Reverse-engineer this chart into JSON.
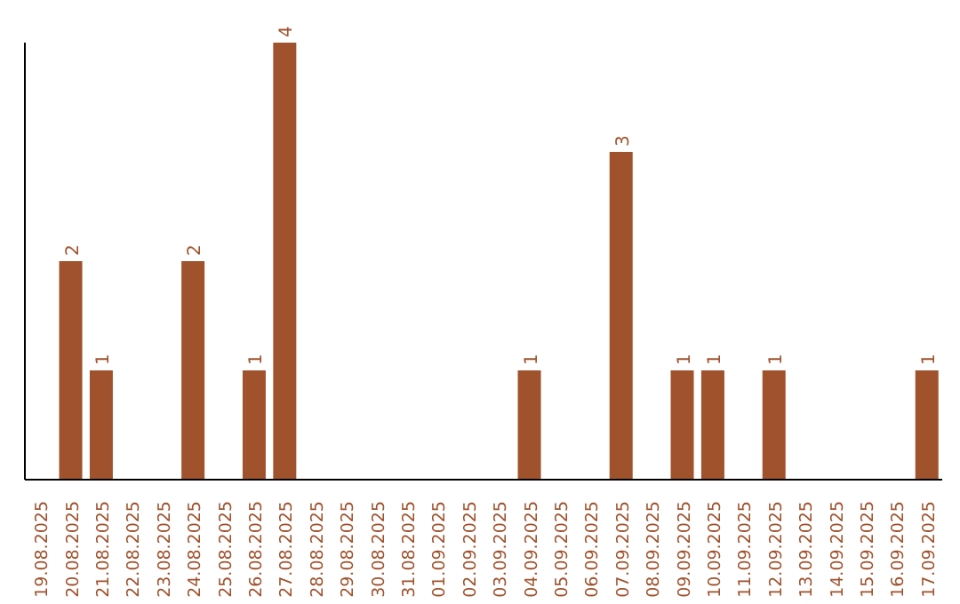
{
  "chart_data": {
    "type": "bar",
    "categories": [
      "19.08.2025",
      "20.08.2025",
      "21.08.2025",
      "22.08.2025",
      "23.08.2025",
      "24.08.2025",
      "25.08.2025",
      "26.08.2025",
      "27.08.2025",
      "28.08.2025",
      "29.08.2025",
      "30.08.2025",
      "31.08.2025",
      "01.09.2025",
      "02.09.2025",
      "03.09.2025",
      "04.09.2025",
      "05.09.2025",
      "06.09.2025",
      "07.09.2025",
      "08.09.2025",
      "09.09.2025",
      "10.09.2025",
      "11.09.2025",
      "12.09.2025",
      "13.09.2025",
      "14.09.2025",
      "15.09.2025",
      "16.09.2025",
      "17.09.2025"
    ],
    "values": [
      null,
      2,
      1,
      null,
      null,
      2,
      null,
      1,
      4,
      null,
      null,
      null,
      null,
      null,
      null,
      null,
      1,
      null,
      null,
      3,
      null,
      1,
      1,
      null,
      1,
      null,
      null,
      null,
      null,
      1
    ],
    "color": "#a0522d",
    "data_labels": true
  }
}
